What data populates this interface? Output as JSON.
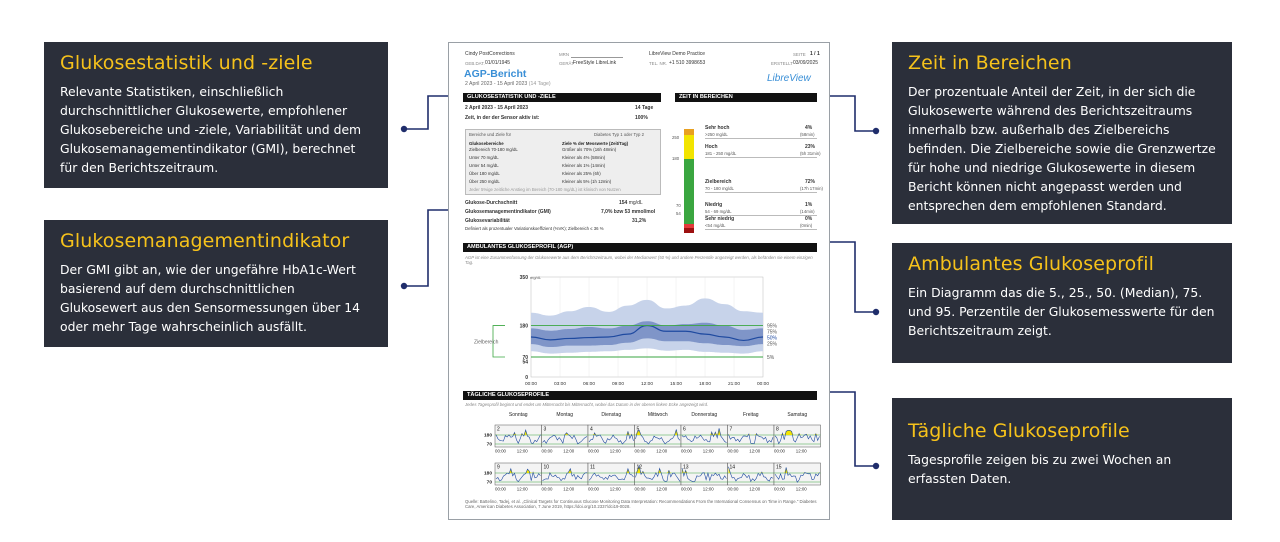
{
  "callouts": {
    "stats": {
      "title": "Glukosestatistik und -ziele",
      "body": "Relevante Statistiken, einschließlich durchschnittlicher Glukosewerte, empfohlener Glukosebereiche und -ziele, Variabilität und dem Glukosemanagementindikator (GMI), berechnet für den Berichtszeitraum."
    },
    "gmi": {
      "title": "Glukosemanagementindikator",
      "body": "Der GMI gibt an, wie der ungefähre HbA1c-Wert basierend auf dem durchschnittlichen Glukosewert aus den Sensormessungen über 14 oder mehr Tage wahrscheinlich ausfällt."
    },
    "tir": {
      "title": "Zeit in Bereichen",
      "body": "Der prozentuale Anteil der Zeit, in der sich die Glukosewerte während des Berichtszeitraums innerhalb bzw. außerhalb des Zielbereichs befinden. Die Zielbereiche sowie die Grenzwertze für hohe und niedrige Glukosewerte in diesem Bericht können nicht angepasst werden und entsprechen dem empfohlenen Standard."
    },
    "agp": {
      "title": "Ambulantes Glukoseprofil",
      "body": "Ein Diagramm das die 5., 25., 50. (Median), 75. und 95. Perzentile der Glukosemesswerte für den Berichtszeitraum zeigt."
    },
    "daily": {
      "title": "Tägliche Glukoseprofile",
      "body": "Tagesprofile zeigen bis zu zwei Wochen an erfassten Daten."
    }
  },
  "report": {
    "patient_name": "Cindy PostCorrections",
    "dob_label": "GEB.DAT.",
    "dob": "01/01/1945",
    "mrn_label": "MRN",
    "device_label": "GERÄT",
    "device": "FreeStyle LibreLink",
    "practice": "LibreView Demo Practice",
    "tel_label": "TEL. NR.",
    "tel": "+1 510 3998653",
    "page_label": "SEITE",
    "page": "1 / 1",
    "created_label": "ERSTELLT",
    "created": "03/09/2025",
    "title": "AGP-Bericht",
    "subtitle": "2 April 2023 - 15 April 2023",
    "subtitle_days": "(14 Tage)",
    "brand": "LibreView",
    "stats_header": "GLUKOSESTATISTIK UND -ZIELE",
    "date_range": "2 April 2023 - 15 April 2023",
    "days": "14 Tage",
    "sensor_active_label": "Zeit, in der der Sensor aktiv ist:",
    "sensor_active": "100%",
    "targets_header": "Bereiche und Ziele für",
    "targets_type": "Diabetes Typ 1 oder Typ 2",
    "targets_col1": "Glukosebereiche",
    "targets_col2": "Ziele % der Messwerte (Zeit/Tag)",
    "targets": [
      {
        "range": "Zielbereich 70-180 mg/dL",
        "goal": "Größer als 70% (16h 48min)"
      },
      {
        "range": "Unter 70 mg/dL",
        "goal": "Kleiner als 4% (58min)"
      },
      {
        "range": "Unter 54 mg/dL",
        "goal": "Kleiner als 1% (14min)"
      },
      {
        "range": "Über 180 mg/dL",
        "goal": "Kleiner als 25% (6h)"
      },
      {
        "range": "Über 250 mg/dL",
        "goal": "Kleiner als 5% (1h 12min)"
      }
    ],
    "targets_note": "Jeder 5%ige zeitliche Anstieg im Bereich (70-180 mg/dL) ist klinisch von Nutzen",
    "avg_label": "Glukose-Durchschnitt",
    "avg": "154",
    "avg_unit": "mg/dL",
    "gmi_label": "Glukosemanagementindikator (GMI)",
    "gmi": "7,0% bzw 53 mmol/mol",
    "var_label": "Glukosevariabilität",
    "var": "31,2%",
    "var_note": "Definiert als prozentualer Variationskoeffizient (%VK); Zielbereich ≤ 36 %",
    "tir_header": "ZEIT IN BEREICHEN",
    "tir_bar_ticks": [
      "250",
      "180",
      "70",
      "54"
    ],
    "tir_rows": [
      {
        "name": "Sehr hoch",
        "range": ">250 mg/dL",
        "pct": "4%",
        "time": "(58min)"
      },
      {
        "name": "Hoch",
        "range": "181 - 250 mg/dL",
        "pct": "23%",
        "time": "(5h 31min)"
      },
      {
        "name": "Zielbereich",
        "range": "70 - 180 mg/dL",
        "pct": "72%",
        "time": "(17h 17min)"
      },
      {
        "name": "Niedrig",
        "range": "54 - 69 mg/dL",
        "pct": "1%",
        "time": "(14min)"
      },
      {
        "name": "Sehr niedrig",
        "range": "<54 mg/dL",
        "pct": "0%",
        "time": "(0min)"
      }
    ],
    "tir_fractions": [
      0.04,
      0.23,
      0.72,
      0.01,
      0.0
    ],
    "tir_colors": [
      "#e8a020",
      "#f2e400",
      "#3aa640",
      "#e23a3a",
      "#9c1010"
    ],
    "agp_header": "AMBULANTES GLUKOSEPROFIL (AGP)",
    "agp_desc": "AGP ist eine Zusammenfassung der Glukosewerte aus dem Berichtszeitraum, wobei der Medianwert (50 %) und andere Perzentile angezeigt werden, als befänden sie einem einzigen Tag.",
    "agp_y_unit": "mg/dL",
    "agp_y_ticks": [
      "350",
      "180",
      "70",
      "54",
      "0"
    ],
    "agp_target_label": "Zielbereich",
    "agp_pct_labels": [
      "95%",
      "75%",
      "50%",
      "25%",
      "5%"
    ],
    "agp_x_ticks": [
      "00:00",
      "03:00",
      "06:00",
      "09:00",
      "12:00",
      "15:00",
      "18:00",
      "21:00",
      "00:00"
    ],
    "daily_header": "TÄGLICHE GLUKOSEPROFILE",
    "daily_desc": "Jedes Tagesprofil beginnt und endet um Mitternacht bis Mitternacht, wobei das Datum in der oberen linken Ecke angezeigt wird.",
    "weekdays": [
      "Sonntag",
      "Montag",
      "Dienstag",
      "Mittwoch",
      "Donnerstag",
      "Freitag",
      "Samstag"
    ],
    "week1_days": [
      "2",
      "3",
      "4",
      "5",
      "6",
      "7",
      "8"
    ],
    "week2_days": [
      "9",
      "10",
      "11",
      "12",
      "13",
      "14",
      "15"
    ],
    "daily_y_ticks": [
      "180",
      "70"
    ],
    "daily_x_ticks": [
      "00:00",
      "12:00"
    ],
    "source_note": "Quelle: Battelino, Tadej, et al. „Clinical Targets for Continuous Glucose Monitoring Data Interpretation: Recommendations From the International Consensus on Time in Range.\" Diabetes Care, American Diabetes Association, 7 June 2019, https://doi.org/10.2337/dci19-0028."
  },
  "chart_data": {
    "type": "area",
    "title": "AMBULANTES GLUKOSEPROFIL (AGP)",
    "xlabel": "",
    "ylabel": "mg/dL",
    "x": [
      "00:00",
      "02:00",
      "04:00",
      "06:00",
      "08:00",
      "10:00",
      "12:00",
      "14:00",
      "16:00",
      "18:00",
      "20:00",
      "22:00",
      "24:00"
    ],
    "ylim": [
      0,
      350
    ],
    "y_ticks": [
      0,
      54,
      70,
      180,
      350
    ],
    "target_range": [
      70,
      180
    ],
    "series": [
      {
        "name": "95%",
        "values": [
          225,
          215,
          230,
          245,
          228,
          250,
          270,
          240,
          250,
          275,
          255,
          230,
          225
        ]
      },
      {
        "name": "75%",
        "values": [
          170,
          162,
          168,
          175,
          170,
          180,
          195,
          180,
          185,
          190,
          180,
          165,
          170
        ]
      },
      {
        "name": "50%",
        "values": [
          140,
          130,
          135,
          138,
          140,
          150,
          180,
          160,
          160,
          150,
          140,
          128,
          140
        ]
      },
      {
        "name": "25%",
        "values": [
          115,
          105,
          110,
          110,
          112,
          120,
          135,
          125,
          125,
          118,
          112,
          108,
          115
        ]
      },
      {
        "name": "5%",
        "values": [
          90,
          82,
          85,
          88,
          90,
          95,
          100,
          92,
          95,
          88,
          85,
          82,
          90
        ]
      }
    ]
  },
  "colors": {
    "callout_bg": "#2b2f3a",
    "callout_title": "#f6c21b",
    "connector": "#1f2d6b",
    "agp_outer": "#c7d3ea",
    "agp_inner": "#7f95c8",
    "agp_median": "#1f4aa0",
    "target_line": "#3aa640",
    "daily_fill": "#f2e400"
  }
}
